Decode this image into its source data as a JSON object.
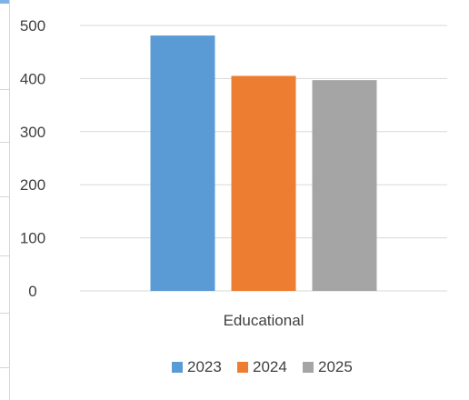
{
  "chart_data": {
    "type": "bar",
    "categories": [
      "Educational"
    ],
    "series": [
      {
        "name": "2023",
        "values": [
          481
        ],
        "color": "#5B9BD5"
      },
      {
        "name": "2024",
        "values": [
          405
        ],
        "color": "#ED7D31"
      },
      {
        "name": "2025",
        "values": [
          397
        ],
        "color": "#A5A5A5"
      }
    ],
    "title": "",
    "xlabel": "",
    "ylabel": "",
    "ylim": [
      0,
      500
    ],
    "yticks": [
      0,
      100,
      200,
      300,
      400,
      500
    ],
    "grid": true,
    "legend_position": "bottom",
    "gridline_color": "#D9D9D9",
    "text_color": "#404040"
  }
}
